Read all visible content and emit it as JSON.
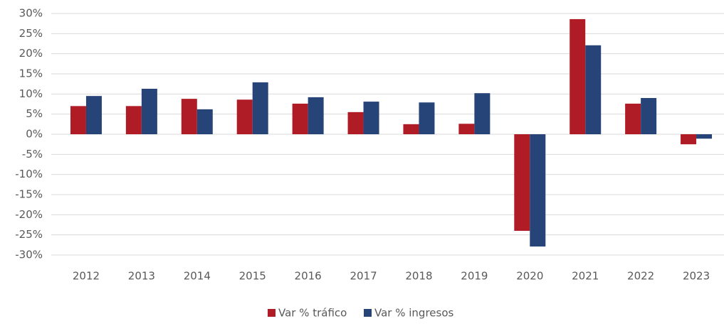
{
  "chart_data": {
    "type": "bar",
    "categories": [
      "2012",
      "2013",
      "2014",
      "2015",
      "2016",
      "2017",
      "2018",
      "2019",
      "2020",
      "2021",
      "2022",
      "2023"
    ],
    "series": [
      {
        "name": "Var % tráfico",
        "color": "#b01c26",
        "values": [
          7.0,
          7.0,
          8.8,
          8.6,
          7.6,
          5.5,
          2.5,
          2.6,
          -24.0,
          28.6,
          7.6,
          -2.5
        ]
      },
      {
        "name": "Var % ingresos",
        "color": "#264478",
        "values": [
          9.5,
          11.3,
          6.2,
          12.9,
          9.2,
          8.1,
          7.9,
          10.2,
          -27.9,
          22.1,
          9.0,
          -1.1
        ]
      }
    ],
    "ylim": [
      -30,
      30
    ],
    "yticks": [
      {
        "value": -30,
        "label": "-30%"
      },
      {
        "value": -25,
        "label": "-25%"
      },
      {
        "value": -20,
        "label": "-20%"
      },
      {
        "value": -15,
        "label": "-15%"
      },
      {
        "value": -10,
        "label": "-10%"
      },
      {
        "value": -5,
        "label": "-5%"
      },
      {
        "value": 0,
        "label": "0%"
      },
      {
        "value": 5,
        "label": "5%"
      },
      {
        "value": 10,
        "label": "10%"
      },
      {
        "value": 15,
        "label": "15%"
      },
      {
        "value": 20,
        "label": "20%"
      },
      {
        "value": 25,
        "label": "25%"
      },
      {
        "value": 30,
        "label": "30%"
      }
    ],
    "grid": true,
    "legend": "bottom"
  }
}
